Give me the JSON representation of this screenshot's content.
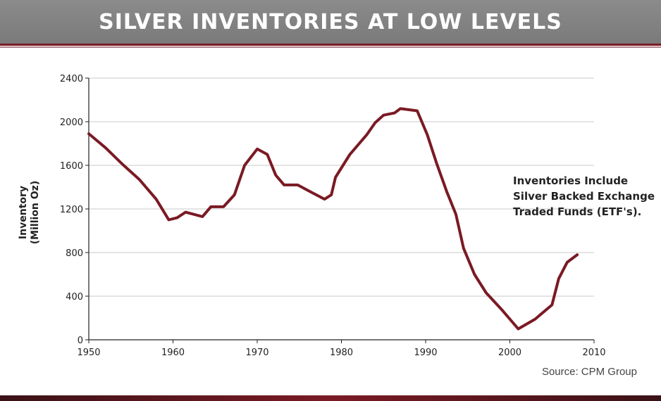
{
  "header": {
    "title": "SILVER INVENTORIES AT LOW LEVELS"
  },
  "source": "Source: CPM Group",
  "annotation": [
    "Inventories Include",
    "Silver Backed Exchange",
    "Traded Funds (ETF's)."
  ],
  "colors": {
    "line": "#7a1a24",
    "header_bg": "#808080",
    "rule": "#7a1a24"
  },
  "chart_data": {
    "type": "line",
    "title": "SILVER INVENTORIES AT LOW LEVELS",
    "ylabel": [
      "Inventory",
      "(Million Oz)"
    ],
    "xlabel": "",
    "xlim": [
      1950,
      2010
    ],
    "ylim": [
      0,
      2400
    ],
    "xticks": [
      "1950",
      "1960",
      "1970",
      "1980",
      "1990",
      "2000",
      "2010"
    ],
    "yticks": [
      "0",
      "400",
      "800",
      "1200",
      "1600",
      "2000",
      "2400"
    ],
    "grid": "horizontal",
    "series": [
      {
        "name": "",
        "x": [
          1950,
          1952,
          1954,
          1956,
          1958,
          1959.5,
          1960.5,
          1961.5,
          1963.5,
          1964.5,
          1966,
          1967.3,
          1968.5,
          1970,
          1971.2,
          1972.2,
          1973.2,
          1974.8,
          1976.5,
          1978,
          1978.8,
          1979.3,
          1981,
          1983,
          1984,
          1985,
          1986.3,
          1987,
          1989,
          1990.2,
          1991.3,
          1992.5,
          1993.6,
          1994.5,
          1995.8,
          1997.2,
          1999,
          2001,
          2003,
          2005,
          2005.8,
          2006.8,
          2008
        ],
        "values": [
          1890,
          1760,
          1610,
          1470,
          1290,
          1100,
          1120,
          1170,
          1130,
          1220,
          1220,
          1330,
          1600,
          1750,
          1700,
          1510,
          1420,
          1420,
          1350,
          1290,
          1330,
          1490,
          1700,
          1880,
          1990,
          2060,
          2080,
          2120,
          2100,
          1880,
          1620,
          1360,
          1150,
          840,
          600,
          430,
          280,
          100,
          190,
          320,
          560,
          710,
          780
        ]
      }
    ]
  }
}
